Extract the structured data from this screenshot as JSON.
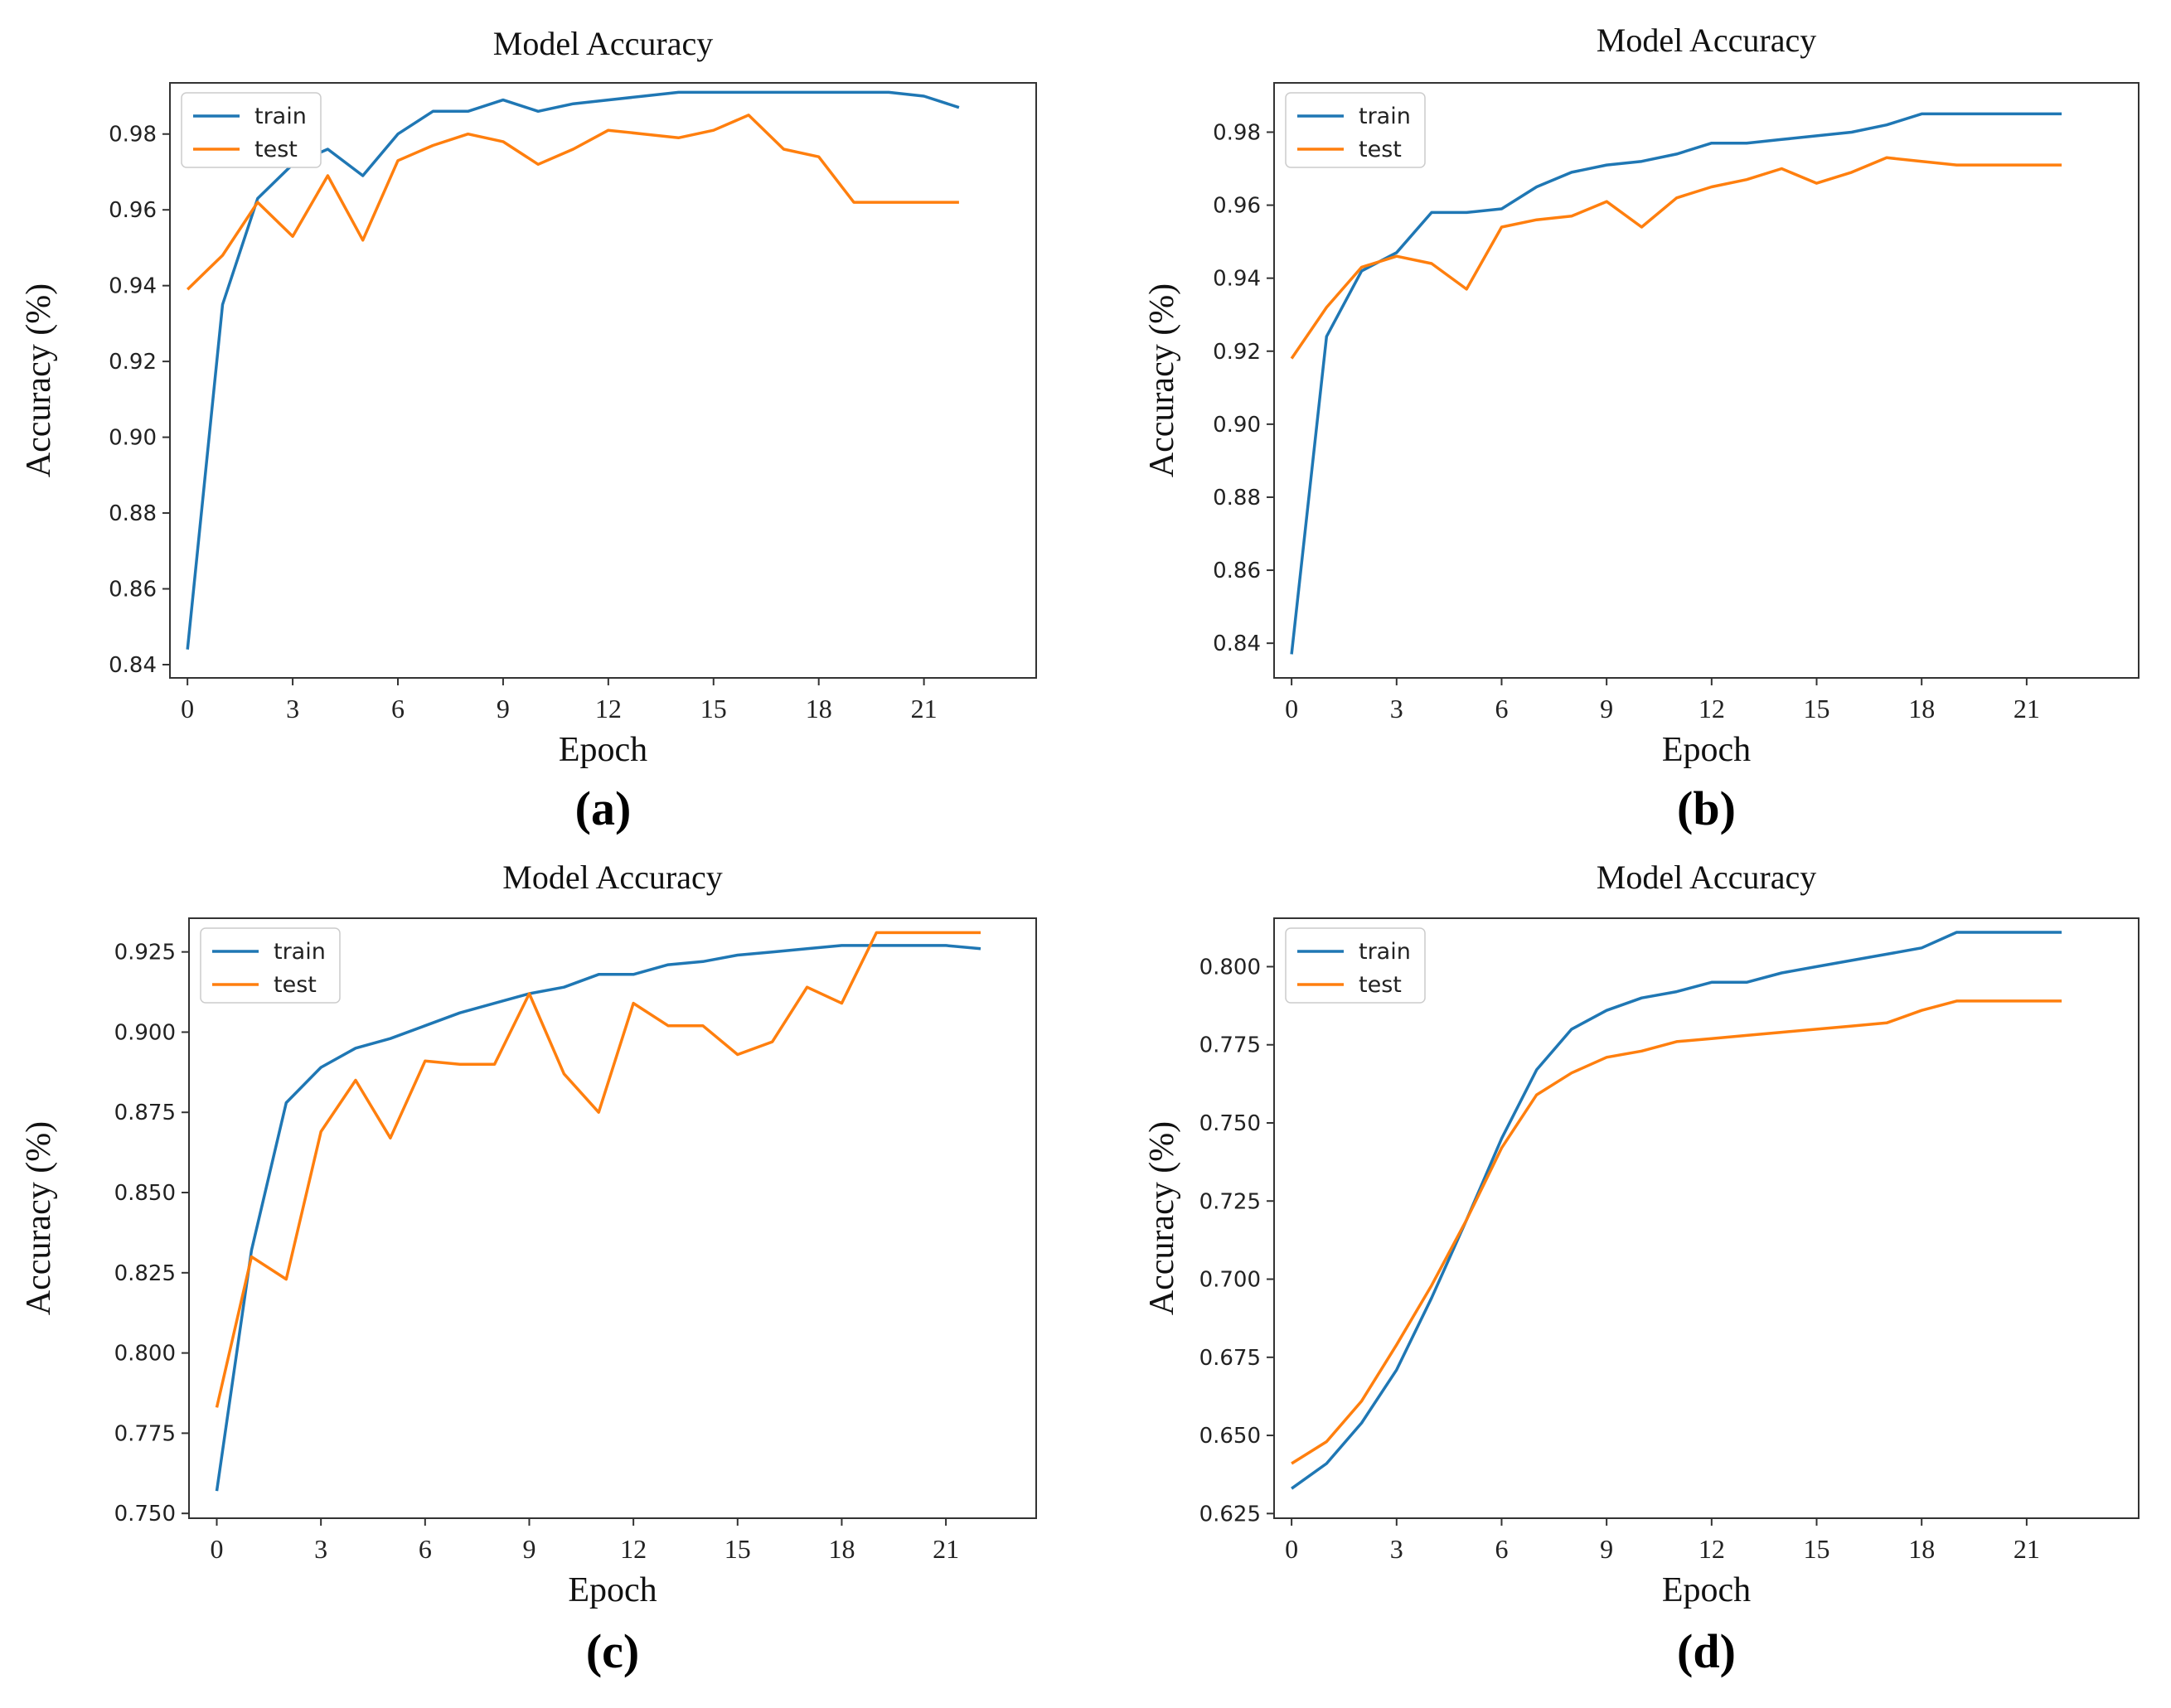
{
  "figure": {
    "colors": {
      "train": "#1f77b4",
      "test": "#ff7f0e",
      "frame": "#333333"
    }
  },
  "chart_data": [
    {
      "type": "line",
      "caption": "(a)",
      "title": "Model Accuracy",
      "xlabel": "Epoch",
      "ylabel": "Accuracy  (%)",
      "xlim": [
        -0.5,
        24.2
      ],
      "ylim": [
        0.8365,
        0.9935
      ],
      "xticks": [
        0,
        3,
        6,
        9,
        12,
        15,
        18,
        21
      ],
      "yticks": [
        0.84,
        0.86,
        0.88,
        0.9,
        0.92,
        0.94,
        0.96,
        0.98
      ],
      "ytick_labels": [
        "0.84",
        "0.86",
        "0.88",
        "0.90",
        "0.92",
        "0.94",
        "0.96",
        "0.98"
      ],
      "legend": [
        "train",
        "test"
      ],
      "legend_position": "top-left",
      "series": [
        {
          "name": "train",
          "color": "#1f77b4",
          "x": [
            0,
            1,
            2,
            3,
            4,
            5,
            6,
            7,
            8,
            9,
            10,
            11,
            12,
            13,
            14,
            15,
            16,
            17,
            18,
            19,
            20,
            21,
            22
          ],
          "values": [
            0.844,
            0.935,
            0.963,
            0.972,
            0.976,
            0.969,
            0.98,
            0.986,
            0.986,
            0.989,
            0.986,
            0.988,
            0.989,
            0.99,
            0.991,
            0.991,
            0.991,
            0.991,
            0.991,
            0.991,
            0.991,
            0.99,
            0.987
          ]
        },
        {
          "name": "test",
          "color": "#ff7f0e",
          "x": [
            0,
            1,
            2,
            3,
            4,
            5,
            6,
            7,
            8,
            9,
            10,
            11,
            12,
            13,
            14,
            15,
            16,
            17,
            18,
            19,
            20,
            21,
            22
          ],
          "values": [
            0.939,
            0.948,
            0.962,
            0.953,
            0.969,
            0.952,
            0.973,
            0.977,
            0.98,
            0.978,
            0.972,
            0.976,
            0.981,
            0.98,
            0.979,
            0.981,
            0.985,
            0.976,
            0.974,
            0.962,
            0.962,
            0.962,
            0.962
          ]
        }
      ]
    },
    {
      "type": "line",
      "caption": "(b)",
      "title": "Model Accuracy",
      "xlabel": "Epoch",
      "ylabel": "Accuracy  (%)",
      "xlim": [
        -0.5,
        24.2
      ],
      "ylim": [
        0.8305,
        0.9935
      ],
      "xticks": [
        0,
        3,
        6,
        9,
        12,
        15,
        18,
        21
      ],
      "yticks": [
        0.84,
        0.86,
        0.88,
        0.9,
        0.92,
        0.94,
        0.96,
        0.98
      ],
      "ytick_labels": [
        "0.84",
        "0.86",
        "0.88",
        "0.90",
        "0.92",
        "0.94",
        "0.96",
        "0.98"
      ],
      "legend": [
        "train",
        "test"
      ],
      "legend_position": "top-left",
      "series": [
        {
          "name": "train",
          "color": "#1f77b4",
          "x": [
            0,
            1,
            2,
            3,
            4,
            5,
            6,
            7,
            8,
            9,
            10,
            11,
            12,
            13,
            14,
            15,
            16,
            17,
            18,
            19,
            20,
            21,
            22
          ],
          "values": [
            0.837,
            0.924,
            0.942,
            0.947,
            0.958,
            0.958,
            0.959,
            0.965,
            0.969,
            0.971,
            0.972,
            0.974,
            0.977,
            0.977,
            0.978,
            0.979,
            0.98,
            0.982,
            0.985,
            0.985,
            0.985,
            0.985,
            0.985
          ]
        },
        {
          "name": "test",
          "color": "#ff7f0e",
          "x": [
            0,
            1,
            2,
            3,
            4,
            5,
            6,
            7,
            8,
            9,
            10,
            11,
            12,
            13,
            14,
            15,
            16,
            17,
            18,
            19,
            20,
            21,
            22
          ],
          "values": [
            0.918,
            0.932,
            0.943,
            0.946,
            0.944,
            0.937,
            0.954,
            0.956,
            0.957,
            0.961,
            0.954,
            0.962,
            0.965,
            0.967,
            0.97,
            0.966,
            0.969,
            0.973,
            0.972,
            0.971,
            0.971,
            0.971,
            0.971
          ]
        }
      ]
    },
    {
      "type": "line",
      "caption": "(c)",
      "title": "Model Accuracy",
      "xlabel": "Epoch",
      "ylabel": "Accuracy  (%)",
      "xlim": [
        -0.8,
        23.6
      ],
      "ylim": [
        0.7485,
        0.9355
      ],
      "xticks": [
        0,
        3,
        6,
        9,
        12,
        15,
        18,
        21
      ],
      "yticks": [
        0.75,
        0.775,
        0.8,
        0.825,
        0.85,
        0.875,
        0.9,
        0.925
      ],
      "ytick_labels": [
        "0.750",
        "0.775",
        "0.800",
        "0.825",
        "0.850",
        "0.875",
        "0.900",
        "0.925"
      ],
      "legend": [
        "train",
        "test"
      ],
      "legend_position": "top-left",
      "series": [
        {
          "name": "train",
          "color": "#1f77b4",
          "x": [
            0,
            1,
            2,
            3,
            4,
            5,
            6,
            7,
            8,
            9,
            10,
            11,
            12,
            13,
            14,
            15,
            16,
            17,
            18,
            19,
            20,
            21,
            22
          ],
          "values": [
            0.757,
            0.832,
            0.878,
            0.889,
            0.895,
            0.898,
            0.902,
            0.906,
            0.909,
            0.912,
            0.914,
            0.918,
            0.918,
            0.921,
            0.922,
            0.924,
            0.925,
            0.926,
            0.927,
            0.927,
            0.927,
            0.927,
            0.926
          ]
        },
        {
          "name": "test",
          "color": "#ff7f0e",
          "x": [
            0,
            1,
            2,
            3,
            4,
            5,
            6,
            7,
            8,
            9,
            10,
            11,
            12,
            13,
            14,
            15,
            16,
            17,
            18,
            19,
            20,
            21,
            22
          ],
          "values": [
            0.783,
            0.83,
            0.823,
            0.869,
            0.885,
            0.867,
            0.891,
            0.89,
            0.89,
            0.912,
            0.887,
            0.875,
            0.909,
            0.902,
            0.902,
            0.893,
            0.897,
            0.914,
            0.909,
            0.931,
            0.931,
            0.931,
            0.931
          ]
        }
      ]
    },
    {
      "type": "line",
      "caption": "(d)",
      "title": "Model Accuracy",
      "xlabel": "Epoch",
      "ylabel": "Accuracy  (%)",
      "xlim": [
        -0.5,
        24.2
      ],
      "ylim": [
        0.6235,
        0.8155
      ],
      "xticks": [
        0,
        3,
        6,
        9,
        12,
        15,
        18,
        21
      ],
      "yticks": [
        0.625,
        0.65,
        0.675,
        0.7,
        0.725,
        0.75,
        0.775,
        0.8
      ],
      "ytick_labels": [
        "0.625",
        "0.650",
        "0.675",
        "0.700",
        "0.725",
        "0.750",
        "0.775",
        "0.800"
      ],
      "legend": [
        "train",
        "test"
      ],
      "legend_position": "top-left",
      "series": [
        {
          "name": "train",
          "color": "#1f77b4",
          "x": [
            0,
            1,
            2,
            3,
            4,
            5,
            6,
            7,
            8,
            9,
            10,
            11,
            12,
            13,
            14,
            15,
            16,
            17,
            18,
            19,
            20,
            21,
            22
          ],
          "values": [
            0.633,
            0.641,
            0.654,
            0.671,
            0.694,
            0.719,
            0.745,
            0.767,
            0.78,
            0.786,
            0.79,
            0.792,
            0.795,
            0.795,
            0.798,
            0.8,
            0.802,
            0.804,
            0.806,
            0.811,
            0.811,
            0.811,
            0.811
          ]
        },
        {
          "name": "test",
          "color": "#ff7f0e",
          "x": [
            0,
            1,
            2,
            3,
            4,
            5,
            6,
            7,
            8,
            9,
            10,
            11,
            12,
            13,
            14,
            15,
            16,
            17,
            18,
            19,
            20,
            21,
            22
          ],
          "values": [
            0.641,
            0.648,
            0.661,
            0.679,
            0.698,
            0.719,
            0.742,
            0.759,
            0.766,
            0.771,
            0.773,
            0.776,
            0.777,
            0.778,
            0.779,
            0.78,
            0.781,
            0.782,
            0.786,
            0.789,
            0.789,
            0.789,
            0.789
          ]
        }
      ]
    }
  ]
}
